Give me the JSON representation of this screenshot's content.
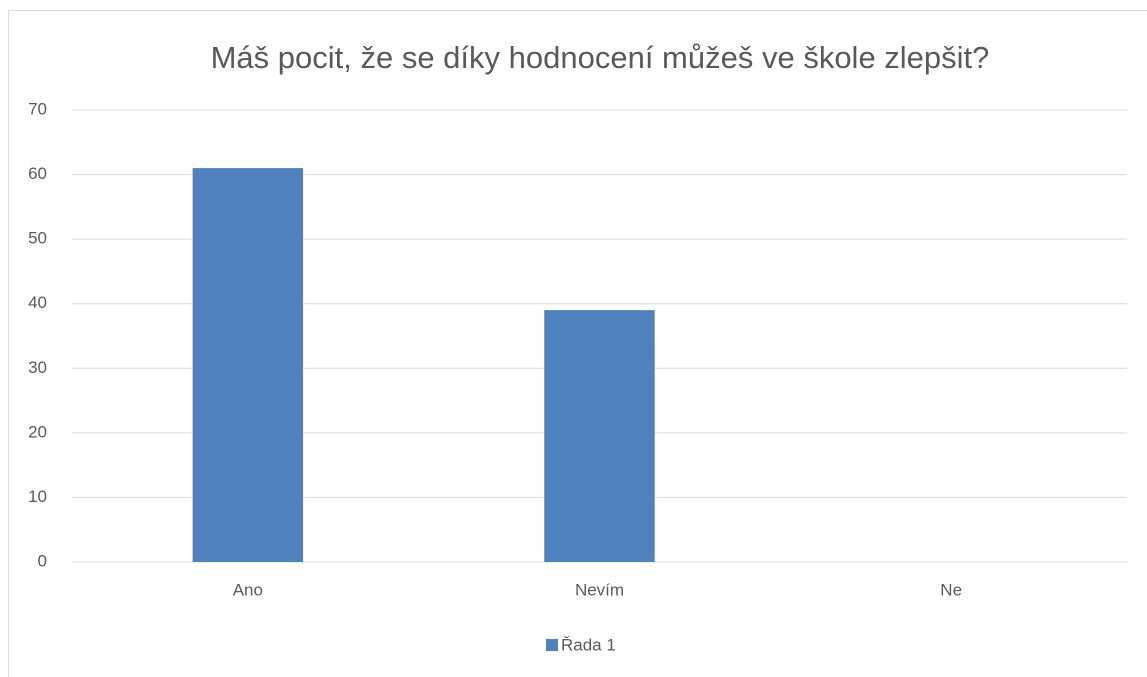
{
  "chart_data": {
    "type": "bar",
    "title": "Máš pocit, že se díky hodnocení můžeš ve škole zlepšit?",
    "categories": [
      "Ano",
      "Nevím",
      "Ne"
    ],
    "series": [
      {
        "name": "Řada 1",
        "color": "#4f81bd",
        "values": [
          61,
          39,
          0
        ]
      }
    ],
    "ylim": [
      0,
      70
    ],
    "yticks": [
      0,
      10,
      20,
      30,
      40,
      50,
      60,
      70
    ],
    "grid": true,
    "legend": "bottom"
  }
}
